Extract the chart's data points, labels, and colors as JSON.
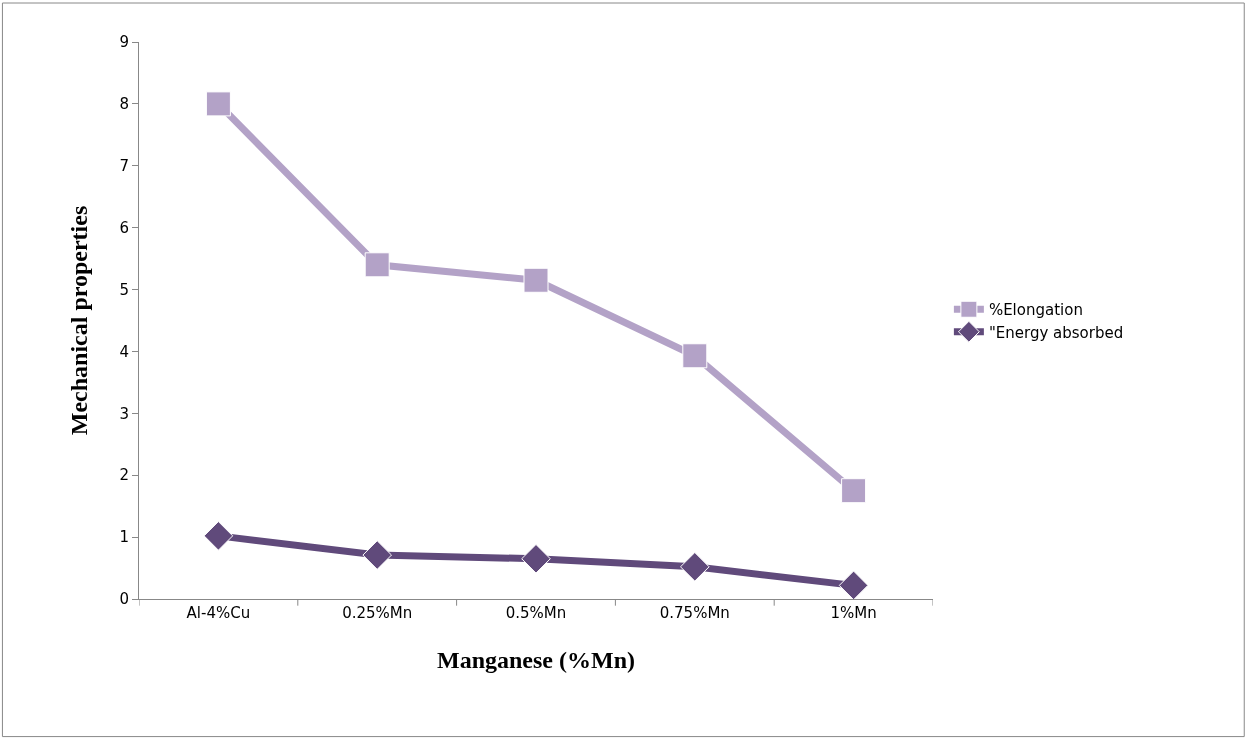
{
  "chart_data": {
    "type": "line",
    "xlabel": "Manganese (%Mn)",
    "ylabel": "Mechanical properties",
    "categories": [
      "Al-4%Cu",
      "0.25%Mn",
      "0.5%Mn",
      "0.75%Mn",
      "1%Mn"
    ],
    "series": [
      {
        "name": "%Elongation",
        "color": "#b3a2c7",
        "marker": "square",
        "values": [
          8,
          5.4,
          5.15,
          3.93,
          1.75
        ]
      },
      {
        "name": "\"Energy absorbed",
        "color": "#604a7b",
        "marker": "diamond",
        "values": [
          1.02,
          0.71,
          0.65,
          0.52,
          0.22
        ]
      }
    ],
    "ylim": [
      0,
      9
    ],
    "yticks": [
      0,
      1,
      2,
      3,
      4,
      5,
      6,
      7,
      8,
      9
    ],
    "legend": "right",
    "line_style": "solid"
  }
}
